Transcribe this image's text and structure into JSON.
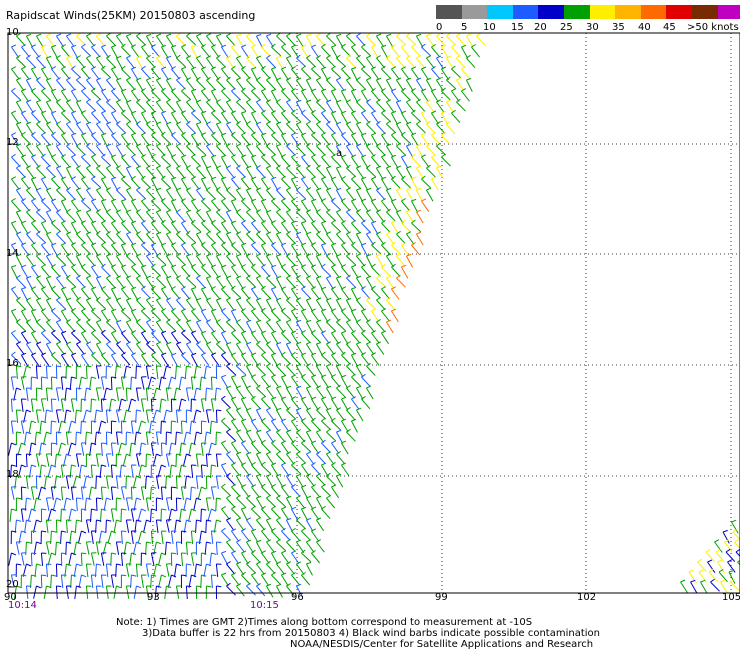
{
  "title": "Rapidscat Winds(25KM) 20150803 ascending",
  "legend": {
    "colors": [
      "#555555",
      "#9a9a9a",
      "#00c8ff",
      "#1e5cff",
      "#0000c8",
      "#00a000",
      "#ffee00",
      "#ffb400",
      "#ff6a00",
      "#e00000",
      "#7a2a00",
      "#c000c0",
      "#6a00c8"
    ],
    "labels": [
      "0",
      "5",
      "10",
      "15",
      "20",
      "25",
      "30",
      "35",
      "40",
      "45",
      ">50 knots"
    ]
  },
  "lat_labels": [
    "10",
    "12",
    "14",
    "16",
    "18",
    "20"
  ],
  "lon_labels": [
    "90",
    "93",
    "96",
    "99",
    "102",
    "105"
  ],
  "time_labels": [
    "10:14",
    "10:15"
  ],
  "notes": {
    "line1": "Note: 1) Times are GMT 2)Times along bottom correspond to measurement at -10S",
    "line2": "3)Data buffer is 22 hrs from 20150803 4) Black wind barbs indicate possible contamination",
    "line3": "NOAA/NESDIS/Center for Satellite Applications and Research"
  },
  "barb_colors": {
    "light": "#1e5cff",
    "moderate": "#00a000",
    "fresh": "#ffee00",
    "strong": "#ff6a00",
    "gale": "#e00000",
    "navy": "#0000c8"
  },
  "marker": "a"
}
